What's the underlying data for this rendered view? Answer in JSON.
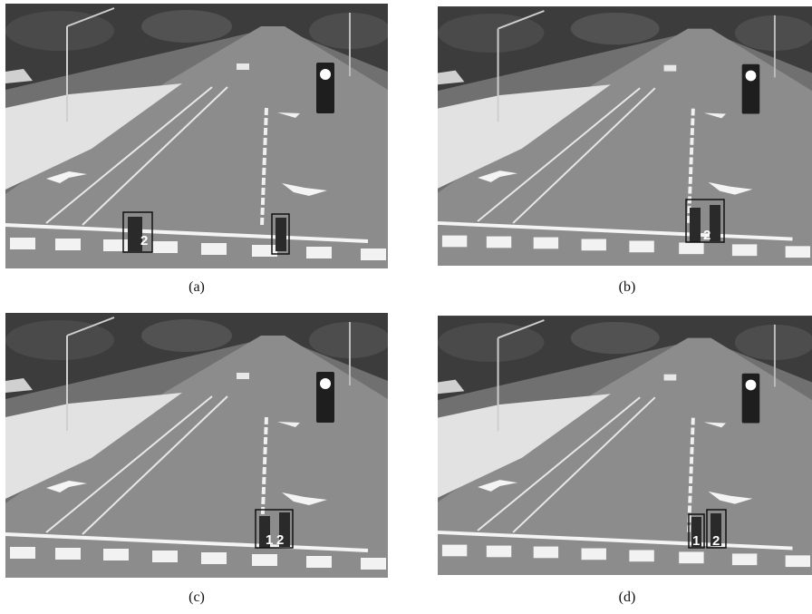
{
  "panels": [
    {
      "caption": "(a)",
      "tracks": [
        "2"
      ]
    },
    {
      "caption": "(b)",
      "tracks": [
        "2"
      ]
    },
    {
      "caption": "(c)",
      "tracks": [
        "1",
        "2"
      ]
    },
    {
      "caption": "(d)",
      "tracks": [
        "1",
        "2"
      ]
    }
  ]
}
